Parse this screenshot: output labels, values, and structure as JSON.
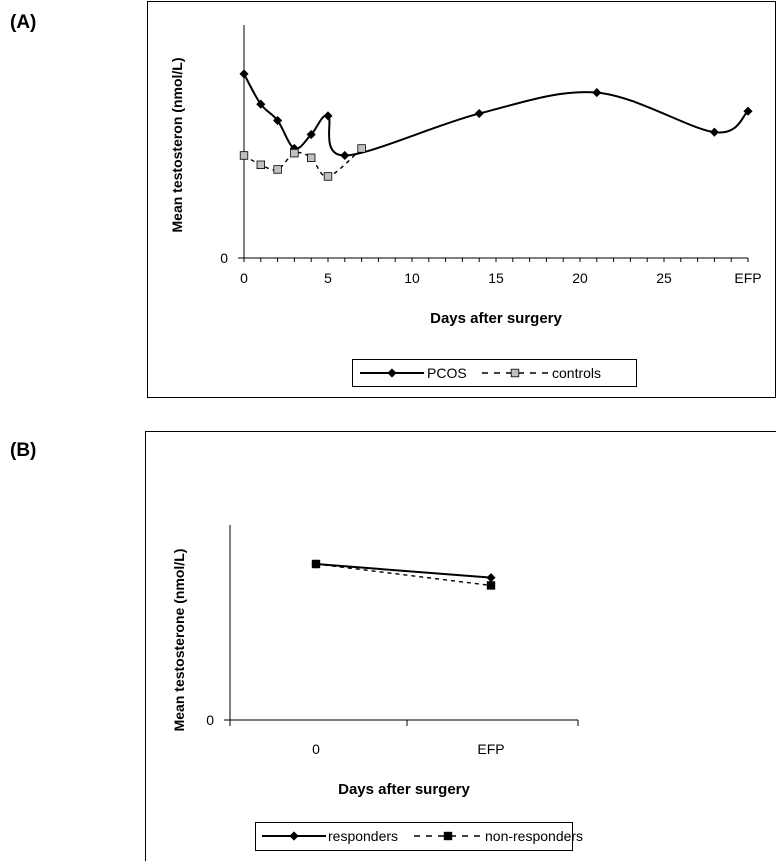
{
  "panels": {
    "a_label": "(A)",
    "b_label": "(B)"
  },
  "chart_data": [
    {
      "type": "line",
      "panel": "(A)",
      "title": "",
      "xlabel": "Days after surgery",
      "ylabel": "Mean testosteron (nmol/L)",
      "x_ticks": [
        "0",
        "5",
        "10",
        "15",
        "20",
        "25",
        "EFP"
      ],
      "y_ticks": [
        "0"
      ],
      "xlim": [
        0,
        30
      ],
      "ylim": [
        0,
        10
      ],
      "grid": false,
      "legend_placement": "bottom",
      "series": [
        {
          "name": "PCOS",
          "style": "solid",
          "marker": "diamond",
          "color": "#000000",
          "x": [
            0,
            1,
            2,
            3,
            4,
            5,
            6,
            14,
            21,
            28,
            30
          ],
          "y": [
            7.9,
            6.6,
            5.9,
            4.7,
            5.3,
            6.1,
            4.4,
            6.2,
            7.1,
            5.4,
            6.3
          ]
        },
        {
          "name": "controls",
          "style": "dashed",
          "marker": "square",
          "color": "#000000",
          "marker_fill": "#c0c0c0",
          "x": [
            0,
            1,
            2,
            3,
            4,
            5,
            7
          ],
          "y": [
            4.4,
            4.0,
            3.8,
            4.5,
            4.3,
            3.5,
            4.7
          ]
        }
      ]
    },
    {
      "type": "line",
      "panel": "(B)",
      "title": "",
      "xlabel": "Days after surgery",
      "ylabel": "Mean testosterone (nmol/L)",
      "categories": [
        "0",
        "EFP"
      ],
      "y_ticks": [
        "0"
      ],
      "ylim": [
        0,
        10
      ],
      "grid": false,
      "legend_placement": "bottom",
      "series": [
        {
          "name": "responders",
          "style": "solid",
          "marker": "diamond",
          "color": "#000000",
          "values": [
            8.0,
            7.3
          ]
        },
        {
          "name": "non-responders",
          "style": "dashed",
          "marker": "square",
          "color": "#000000",
          "values": [
            8.0,
            6.9
          ]
        }
      ]
    }
  ]
}
